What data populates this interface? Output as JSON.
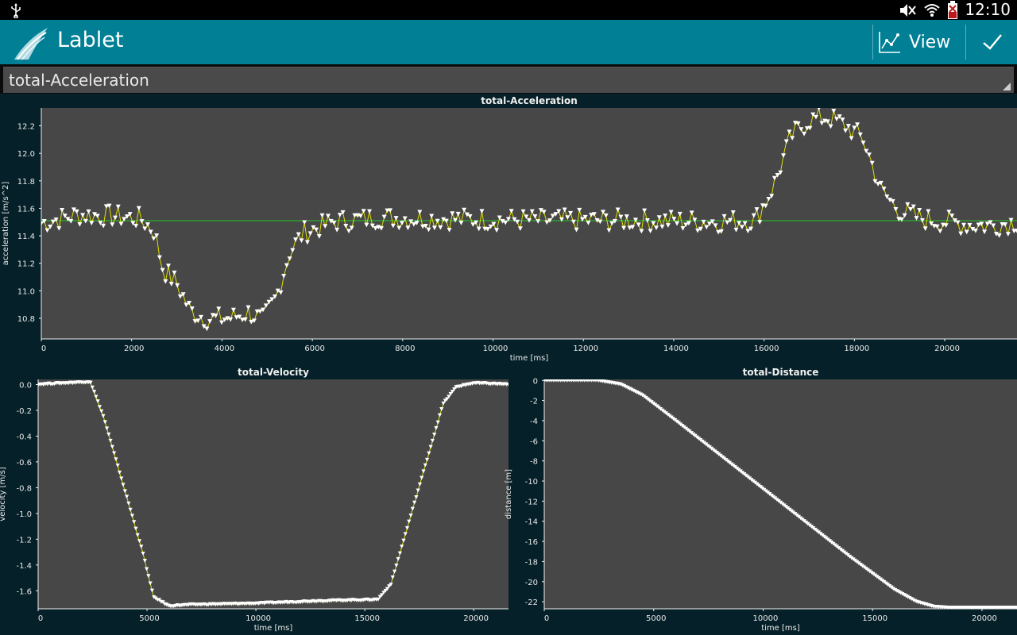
{
  "status_bar": {
    "time": "12:10",
    "icons": [
      "usb-icon",
      "mute-icon",
      "wifi-icon",
      "battery-icon"
    ]
  },
  "action_bar": {
    "app_title": "Lablet",
    "view_label": "View",
    "icons": [
      "lablet-logo",
      "graph-icon",
      "check-icon"
    ],
    "color": "#007f95"
  },
  "selector": {
    "value": "total-Acceleration"
  },
  "chart_data": [
    {
      "type": "line",
      "title": "total-Acceleration",
      "xlabel": "time [ms]",
      "ylabel": "acceleration [m/s^2]",
      "xlim": [
        0,
        21600
      ],
      "ylim": [
        10.65,
        12.33
      ],
      "xticks": [
        0,
        2000,
        4000,
        6000,
        8000,
        10000,
        12000,
        14000,
        16000,
        18000,
        20000
      ],
      "yticks": [
        10.8,
        11.0,
        11.2,
        11.4,
        11.6,
        11.8,
        12.0,
        12.2
      ],
      "reference_line": 11.51,
      "line_color": "#e0e000",
      "marker_color": "#ffffff",
      "reference_color": "#22cc22",
      "x": [
        0,
        800,
        1600,
        2200,
        2500,
        2700,
        3000,
        3300,
        3700,
        4200,
        4600,
        4900,
        5200,
        5500,
        5800,
        6500,
        7500,
        9000,
        11000,
        13000,
        15000,
        15800,
        16200,
        16600,
        17000,
        17400,
        17800,
        18200,
        18600,
        19000,
        19500,
        20000,
        20500,
        21000,
        21600
      ],
      "y": [
        11.49,
        11.55,
        11.54,
        11.52,
        11.43,
        11.15,
        11.05,
        10.85,
        10.79,
        10.8,
        10.84,
        10.78,
        10.95,
        11.28,
        11.42,
        11.5,
        11.53,
        11.52,
        11.51,
        11.51,
        11.5,
        11.51,
        11.75,
        12.12,
        12.24,
        12.26,
        12.2,
        12.1,
        11.72,
        11.58,
        11.52,
        11.5,
        11.48,
        11.47,
        11.5
      ]
    },
    {
      "type": "line",
      "title": "total-Velocity",
      "xlabel": "time [ms]",
      "ylabel": "velocity [m/s]",
      "xlim": [
        0,
        21600
      ],
      "ylim": [
        -1.74,
        0.04
      ],
      "xticks": [
        0,
        5000,
        10000,
        15000,
        20000
      ],
      "yticks": [
        0.0,
        -0.2,
        -0.4,
        -0.6,
        -0.8,
        -1.0,
        -1.2,
        -1.4,
        -1.6
      ],
      "line_color": "#e0e000",
      "marker_color": "#ffffff",
      "x": [
        0,
        2400,
        3000,
        3600,
        4200,
        4800,
        5300,
        6000,
        7000,
        10000,
        13000,
        15600,
        16200,
        16800,
        17400,
        18000,
        18600,
        19200,
        20000,
        21600
      ],
      "y": [
        0.0,
        0.02,
        -0.25,
        -0.6,
        -0.95,
        -1.3,
        -1.65,
        -1.72,
        -1.71,
        -1.7,
        -1.68,
        -1.67,
        -1.55,
        -1.2,
        -0.85,
        -0.5,
        -0.15,
        -0.02,
        0.01,
        0.0
      ]
    },
    {
      "type": "line",
      "title": "total-Distance",
      "xlabel": "time [ms]",
      "ylabel": "distance [m]",
      "xlim": [
        0,
        21600
      ],
      "ylim": [
        -22.7,
        0.1
      ],
      "xticks": [
        0,
        5000,
        10000,
        15000,
        20000
      ],
      "yticks": [
        0,
        -2,
        -4,
        -6,
        -8,
        -10,
        -12,
        -14,
        -16,
        -18,
        -20,
        -22
      ],
      "line_color": "#ffffff",
      "marker_color": "#ffffff",
      "x": [
        0,
        2400,
        3500,
        4500,
        6000,
        8000,
        10000,
        12000,
        14000,
        16000,
        17000,
        17800,
        18500,
        21600
      ],
      "y": [
        0,
        0,
        -0.4,
        -1.5,
        -4.0,
        -7.4,
        -10.8,
        -14.2,
        -17.6,
        -20.8,
        -22.0,
        -22.5,
        -22.6,
        -22.6
      ]
    }
  ]
}
